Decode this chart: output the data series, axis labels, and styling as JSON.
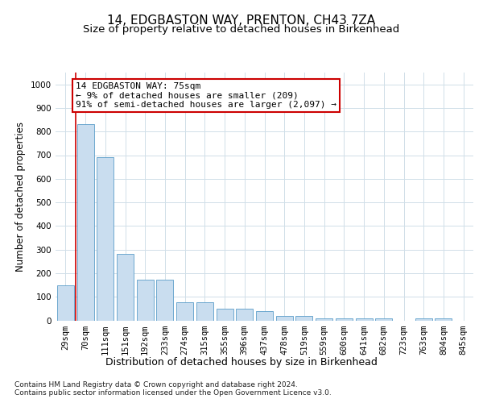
{
  "title1": "14, EDGBASTON WAY, PRENTON, CH43 7ZA",
  "title2": "Size of property relative to detached houses in Birkenhead",
  "xlabel": "Distribution of detached houses by size in Birkenhead",
  "ylabel": "Number of detached properties",
  "categories": [
    "29sqm",
    "70sqm",
    "111sqm",
    "151sqm",
    "192sqm",
    "233sqm",
    "274sqm",
    "315sqm",
    "355sqm",
    "396sqm",
    "437sqm",
    "478sqm",
    "519sqm",
    "559sqm",
    "600sqm",
    "641sqm",
    "682sqm",
    "723sqm",
    "763sqm",
    "804sqm",
    "845sqm"
  ],
  "values": [
    148,
    830,
    690,
    283,
    173,
    173,
    77,
    77,
    50,
    50,
    40,
    20,
    20,
    10,
    10,
    10,
    10,
    0,
    10,
    10,
    0
  ],
  "bar_color": "#c9ddef",
  "bar_edge_color": "#5b9dc9",
  "grid_color": "#d0dfe8",
  "background_color": "#ffffff",
  "annotation_line1": "14 EDGBASTON WAY: 75sqm",
  "annotation_line2": "← 9% of detached houses are smaller (209)",
  "annotation_line3": "91% of semi-detached houses are larger (2,097) →",
  "annotation_box_color": "#ffffff",
  "annotation_box_edge": "#cc0000",
  "vline_color": "#cc0000",
  "vline_x": 0.5,
  "ylim": [
    0,
    1050
  ],
  "yticks": [
    0,
    100,
    200,
    300,
    400,
    500,
    600,
    700,
    800,
    900,
    1000
  ],
  "footer1": "Contains HM Land Registry data © Crown copyright and database right 2024.",
  "footer2": "Contains public sector information licensed under the Open Government Licence v3.0.",
  "title1_fontsize": 11,
  "title2_fontsize": 9.5,
  "tick_fontsize": 7.5,
  "xlabel_fontsize": 9,
  "ylabel_fontsize": 8.5,
  "footer_fontsize": 6.5,
  "annotation_fontsize": 8
}
